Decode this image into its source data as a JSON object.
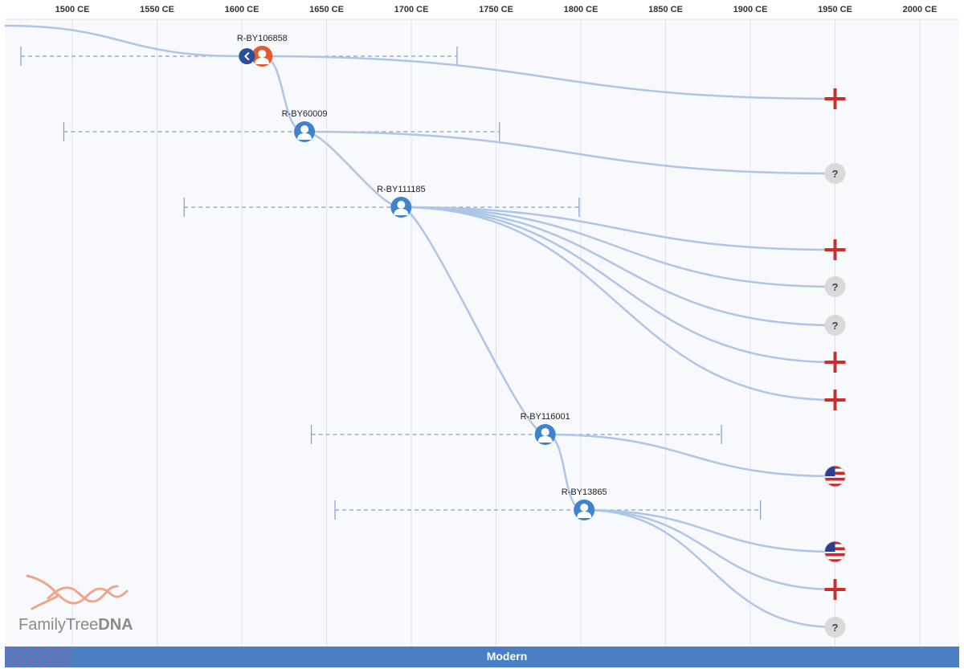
{
  "chart_data": {
    "type": "tree-timeline",
    "x_ticks": [
      "1500 CE",
      "1550 CE",
      "1600 CE",
      "1650 CE",
      "1700 CE",
      "1750 CE",
      "1800 CE",
      "1850 CE",
      "1900 CE",
      "1950 CE",
      "2000 CE"
    ],
    "x_tick_years": [
      1500,
      1550,
      1600,
      1650,
      1700,
      1750,
      1800,
      1850,
      1900,
      1950,
      2000
    ],
    "xlim": [
      1460,
      2020
    ],
    "grid": true,
    "era_band": {
      "label": "Modern"
    },
    "nodes": [
      {
        "id": "n1",
        "label": "R-BY106858",
        "year": 1612,
        "row": 0,
        "range": [
          1460,
          1727
        ],
        "current": true,
        "has_back_button": true
      },
      {
        "id": "n2",
        "label": "R-BY60009",
        "year": 1637,
        "row": 1,
        "range": [
          1495,
          1752
        ]
      },
      {
        "id": "n3",
        "label": "R-BY111185",
        "year": 1694,
        "row": 2,
        "range": [
          1566,
          1799
        ]
      },
      {
        "id": "n4",
        "label": "R-BY116001",
        "year": 1779,
        "row": 6,
        "range": [
          1641,
          1883
        ]
      },
      {
        "id": "n5",
        "label": "R-BY13865",
        "year": 1802,
        "row": 7,
        "range": [
          1655,
          1906
        ]
      }
    ],
    "leaves": [
      {
        "parent": "n1",
        "row": 1,
        "type": "cross"
      },
      {
        "parent": "n2",
        "row": 2,
        "type": "unknown"
      },
      {
        "parent": "n3",
        "row": 3,
        "type": "cross"
      },
      {
        "parent": "n3",
        "row": 4,
        "type": "unknown"
      },
      {
        "parent": "n3",
        "row": 5,
        "type": "unknown"
      },
      {
        "parent": "n3",
        "row": 6,
        "type": "cross"
      },
      {
        "parent": "n3",
        "row": 7,
        "type": "cross"
      },
      {
        "parent": "n4",
        "row": 8,
        "type": "us-flag"
      },
      {
        "parent": "n5",
        "row": 9,
        "type": "us-flag"
      },
      {
        "parent": "n5",
        "row": 10,
        "type": "cross"
      },
      {
        "parent": "n5",
        "row": 11,
        "type": "unknown"
      }
    ],
    "leaf_year": 1950,
    "incoming_line": true
  },
  "logo": {
    "text_light": "FamilyTree",
    "text_bold": "DNA"
  },
  "colors": {
    "grid": "#dde3ee",
    "plot_bg": "#f7f9fd",
    "link": "#aec5e6",
    "range": "#7fa2c9",
    "node": "#3f83cf",
    "current_node": "#e65a2c",
    "back_button": "#2a4f9a",
    "cross": "#d22b2b",
    "leaf_bg": "#d9d9d9",
    "era": "#4a7fc4",
    "logo_helix": "#f0a58b"
  }
}
